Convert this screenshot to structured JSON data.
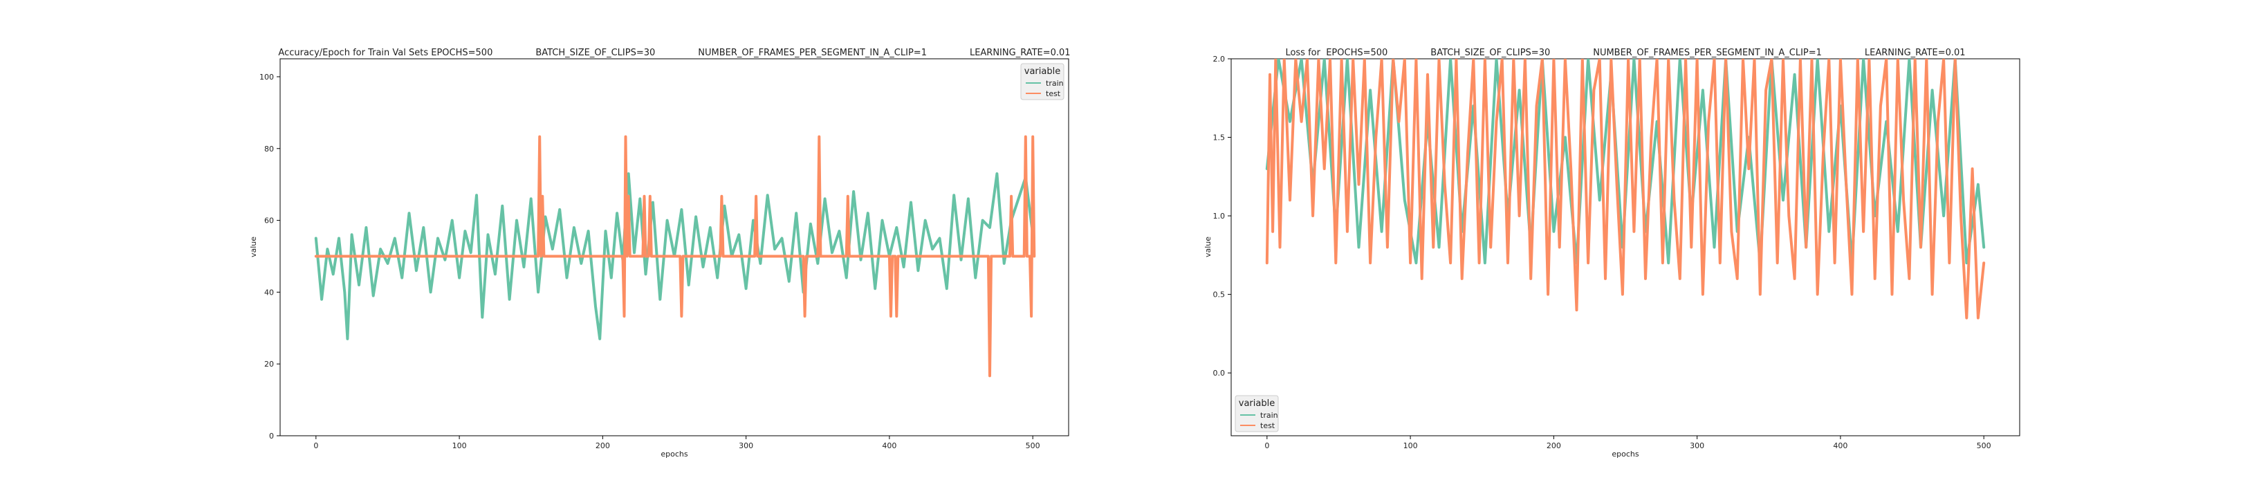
{
  "colors": {
    "train": "#66c2a5",
    "test": "#fc8d62",
    "legend_bg": "#f0f0f0",
    "axis": "#000000"
  },
  "chart_data": [
    {
      "type": "line",
      "title": "Accuracy/Epoch for Train Val Sets EPOCHS=500               BATCH_SIZE_OF_CLIPS=30               NUMBER_OF_FRAMES_PER_SEGMENT_IN_A_CLIP=1               LEARNING_RATE=0.01",
      "xlabel": "epochs",
      "ylabel": "value",
      "xlim": [
        -25,
        525
      ],
      "ylim": [
        0,
        105
      ],
      "xticks": [
        0,
        100,
        200,
        300,
        400,
        500
      ],
      "yticks": [
        0,
        20,
        40,
        60,
        80,
        100
      ],
      "legend": {
        "title": "variable",
        "entries": [
          "train",
          "test"
        ],
        "position": "top-right"
      },
      "series": [
        {
          "name": "train",
          "x": [
            0,
            4,
            8,
            12,
            16,
            20,
            22,
            25,
            30,
            35,
            40,
            45,
            50,
            55,
            60,
            65,
            70,
            75,
            80,
            85,
            90,
            95,
            100,
            104,
            108,
            112,
            116,
            120,
            125,
            130,
            135,
            140,
            145,
            150,
            155,
            160,
            165,
            170,
            175,
            180,
            185,
            190,
            195,
            198,
            202,
            206,
            210,
            214,
            218,
            222,
            226,
            230,
            235,
            240,
            245,
            250,
            255,
            260,
            265,
            270,
            275,
            280,
            285,
            290,
            295,
            300,
            305,
            310,
            315,
            320,
            325,
            330,
            335,
            340,
            345,
            350,
            355,
            360,
            365,
            370,
            375,
            380,
            385,
            390,
            395,
            400,
            405,
            410,
            415,
            420,
            425,
            430,
            435,
            440,
            445,
            450,
            455,
            460,
            465,
            470,
            475,
            480,
            485,
            490,
            495,
            500
          ],
          "values": [
            55,
            38,
            52,
            45,
            55,
            40,
            27,
            56,
            42,
            58,
            39,
            52,
            48,
            55,
            44,
            62,
            46,
            58,
            40,
            55,
            49,
            60,
            44,
            57,
            51,
            67,
            33,
            56,
            45,
            64,
            38,
            60,
            47,
            66,
            40,
            61,
            52,
            63,
            44,
            58,
            48,
            57,
            36,
            27,
            57,
            44,
            62,
            49,
            73,
            51,
            66,
            45,
            65,
            38,
            60,
            50,
            63,
            42,
            61,
            47,
            58,
            44,
            64,
            50,
            56,
            41,
            60,
            48,
            67,
            52,
            55,
            43,
            62,
            40,
            59,
            48,
            66,
            51,
            57,
            44,
            68,
            49,
            62,
            41,
            60,
            50,
            58,
            47,
            65,
            46,
            60,
            52,
            55,
            41,
            67,
            49,
            66,
            44,
            60,
            58,
            73,
            48,
            60,
            66,
            72,
            56
          ]
        },
        {
          "name": "test",
          "x": [
            0,
            155,
            156,
            157,
            158,
            159,
            214,
            215,
            216,
            217,
            218,
            219,
            228,
            229,
            230,
            232,
            233,
            234,
            254,
            255,
            256,
            282,
            283,
            284,
            306,
            307,
            308,
            340,
            341,
            342,
            350,
            351,
            352,
            370,
            371,
            372,
            400,
            401,
            402,
            404,
            405,
            406,
            469,
            470,
            471,
            484,
            485,
            486,
            494,
            495,
            496,
            498,
            499,
            500,
            501
          ],
          "values": [
            50,
            50,
            83.3,
            50,
            66.7,
            50,
            50,
            33.3,
            83.3,
            50,
            66.7,
            50,
            50,
            66.7,
            50,
            50,
            66.7,
            50,
            50,
            33.3,
            50,
            50,
            66.7,
            50,
            50,
            66.7,
            50,
            50,
            33.3,
            50,
            50,
            83.3,
            50,
            50,
            66.7,
            50,
            50,
            33.3,
            50,
            50,
            33.3,
            50,
            50,
            16.7,
            50,
            50,
            66.7,
            50,
            50,
            83.3,
            50,
            50,
            33.3,
            83.3,
            50
          ]
        }
      ]
    },
    {
      "type": "line",
      "title": "Loss for  EPOCHS=500               BATCH_SIZE_OF_CLIPS=30               NUMBER_OF_FRAMES_PER_SEGMENT_IN_A_CLIP=1               LEARNING_RATE=0.01",
      "xlabel": "epochs",
      "ylabel": "value",
      "xlim": [
        -25,
        525
      ],
      "ylim": [
        -0.4,
        2.0
      ],
      "xticks": [
        0,
        100,
        200,
        300,
        400,
        500
      ],
      "yticks": [
        0.0,
        0.5,
        1.0,
        1.5,
        2.0
      ],
      "legend": {
        "title": "variable",
        "entries": [
          "train",
          "test"
        ],
        "position": "bottom-left"
      },
      "series": [
        {
          "name": "train",
          "x": [
            0,
            8,
            16,
            24,
            32,
            40,
            48,
            56,
            64,
            72,
            80,
            88,
            96,
            104,
            112,
            120,
            128,
            136,
            144,
            152,
            160,
            168,
            176,
            184,
            192,
            200,
            208,
            216,
            224,
            232,
            240,
            248,
            256,
            264,
            272,
            280,
            288,
            296,
            304,
            312,
            320,
            328,
            336,
            344,
            352,
            360,
            368,
            376,
            384,
            392,
            400,
            408,
            416,
            424,
            432,
            440,
            448,
            456,
            464,
            472,
            480,
            488,
            496,
            500
          ],
          "values": [
            1.3,
            2.0,
            1.6,
            2.0,
            1.2,
            2.0,
            0.9,
            2.0,
            0.8,
            1.8,
            0.9,
            2.0,
            1.1,
            0.7,
            1.6,
            0.8,
            2.0,
            0.9,
            1.7,
            0.7,
            2.0,
            1.0,
            1.8,
            0.8,
            2.0,
            0.9,
            1.5,
            0.7,
            2.0,
            1.1,
            1.9,
            0.8,
            2.0,
            0.9,
            1.6,
            0.7,
            2.0,
            1.0,
            1.8,
            0.8,
            2.0,
            0.9,
            1.5,
            0.7,
            2.0,
            1.1,
            1.9,
            0.8,
            2.0,
            0.9,
            1.7,
            0.7,
            2.0,
            1.0,
            1.6,
            0.9,
            2.0,
            0.8,
            1.8,
            1.0,
            2.0,
            0.7,
            1.2,
            0.8
          ]
        },
        {
          "name": "test",
          "x": [
            0,
            2,
            4,
            6,
            9,
            12,
            16,
            20,
            24,
            28,
            32,
            36,
            40,
            44,
            48,
            52,
            56,
            60,
            64,
            68,
            72,
            76,
            80,
            84,
            88,
            92,
            96,
            100,
            104,
            108,
            112,
            116,
            120,
            124,
            128,
            132,
            136,
            140,
            144,
            148,
            152,
            156,
            160,
            164,
            168,
            172,
            176,
            180,
            184,
            188,
            192,
            196,
            200,
            204,
            208,
            212,
            216,
            220,
            224,
            228,
            232,
            236,
            240,
            244,
            248,
            252,
            256,
            260,
            264,
            268,
            272,
            276,
            280,
            284,
            288,
            292,
            296,
            300,
            304,
            308,
            312,
            316,
            320,
            324,
            328,
            332,
            336,
            340,
            344,
            348,
            352,
            356,
            360,
            364,
            368,
            372,
            376,
            380,
            384,
            388,
            392,
            396,
            400,
            404,
            408,
            412,
            416,
            420,
            424,
            428,
            432,
            436,
            440,
            444,
            448,
            452,
            456,
            460,
            464,
            468,
            472,
            476,
            480,
            484,
            488,
            492,
            496,
            500
          ],
          "values": [
            0.7,
            1.9,
            0.9,
            2.0,
            0.8,
            2.0,
            1.1,
            2.0,
            1.6,
            2.0,
            1.0,
            2.0,
            1.3,
            2.0,
            0.7,
            2.0,
            0.9,
            2.0,
            1.2,
            2.0,
            0.7,
            1.5,
            2.0,
            0.8,
            2.0,
            1.6,
            2.0,
            0.7,
            2.0,
            0.6,
            1.9,
            0.8,
            2.0,
            1.2,
            0.7,
            2.0,
            0.6,
            1.4,
            2.0,
            0.7,
            2.0,
            0.8,
            1.6,
            2.0,
            0.7,
            2.0,
            1.0,
            2.0,
            0.6,
            1.7,
            2.0,
            0.5,
            2.0,
            0.8,
            2.0,
            1.3,
            0.4,
            2.0,
            0.7,
            1.8,
            2.0,
            0.6,
            2.0,
            1.2,
            0.5,
            2.0,
            0.9,
            2.0,
            0.6,
            1.5,
            2.0,
            0.7,
            2.0,
            1.1,
            0.6,
            2.0,
            0.8,
            2.0,
            0.5,
            1.6,
            2.0,
            0.7,
            2.0,
            0.9,
            0.6,
            2.0,
            1.3,
            2.0,
            0.5,
            1.8,
            2.0,
            0.7,
            2.0,
            1.0,
            0.6,
            2.0,
            0.8,
            2.0,
            0.5,
            1.4,
            2.0,
            0.7,
            2.0,
            1.2,
            0.5,
            2.0,
            0.9,
            2.0,
            0.6,
            1.7,
            2.0,
            0.5,
            2.0,
            1.1,
            0.6,
            2.0,
            0.8,
            2.0,
            0.5,
            1.6,
            2.0,
            0.7,
            2.0,
            1.0,
            0.35,
            1.3,
            0.35,
            0.7
          ]
        }
      ]
    }
  ]
}
